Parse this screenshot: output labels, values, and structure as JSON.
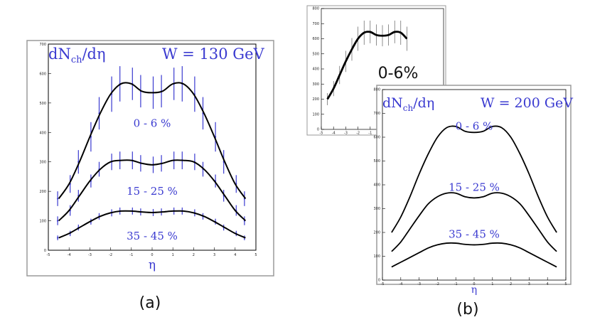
{
  "chart_data": [
    {
      "id": "a",
      "type": "line",
      "caption": "(a)",
      "title_left": "dNch/dη",
      "title_right": "W = 130 GeV",
      "xlabel": "η",
      "ylabel": "",
      "xlim": [
        -5,
        5
      ],
      "ylim": [
        0,
        700
      ],
      "xticks": [
        -5,
        -4,
        -3,
        -2,
        -1,
        0,
        1,
        2,
        3,
        4,
        5
      ],
      "yticks": [
        0,
        100,
        200,
        300,
        400,
        500,
        600,
        700
      ],
      "series": [
        {
          "name": "0 - 6 %",
          "x": [
            -4.5,
            -4.0,
            -3.5,
            -3.0,
            -2.5,
            -2.0,
            -1.5,
            -1.0,
            -0.5,
            0.0,
            0.5,
            1.0,
            1.5,
            2.0,
            2.5,
            3.0,
            3.5,
            4.0,
            4.5
          ],
          "y": [
            175,
            225,
            300,
            385,
            465,
            530,
            565,
            565,
            540,
            535,
            540,
            565,
            565,
            530,
            465,
            385,
            300,
            225,
            175
          ],
          "err": [
            25,
            30,
            40,
            50,
            55,
            60,
            60,
            55,
            55,
            55,
            55,
            55,
            60,
            60,
            55,
            50,
            40,
            30,
            25
          ]
        },
        {
          "name": "15 - 25 %",
          "x": [
            -4.5,
            -4.0,
            -3.5,
            -3.0,
            -2.5,
            -2.0,
            -1.5,
            -1.0,
            -0.5,
            0.0,
            0.5,
            1.0,
            1.5,
            2.0,
            2.5,
            3.0,
            3.5,
            4.0,
            4.5
          ],
          "y": [
            100,
            135,
            185,
            235,
            275,
            300,
            305,
            305,
            295,
            290,
            295,
            305,
            305,
            300,
            275,
            235,
            185,
            135,
            100
          ],
          "err": [
            15,
            18,
            20,
            22,
            25,
            28,
            30,
            30,
            28,
            28,
            28,
            30,
            30,
            28,
            25,
            22,
            20,
            18,
            15
          ]
        },
        {
          "name": "35 - 45 %",
          "x": [
            -4.5,
            -4.0,
            -3.5,
            -3.0,
            -2.5,
            -2.0,
            -1.5,
            -1.0,
            -0.5,
            0.0,
            0.5,
            1.0,
            1.5,
            2.0,
            2.5,
            3.0,
            3.5,
            4.0,
            4.5
          ],
          "y": [
            42,
            57,
            77,
            97,
            115,
            127,
            133,
            133,
            130,
            128,
            130,
            133,
            133,
            127,
            115,
            97,
            77,
            57,
            42
          ],
          "err": [
            8,
            9,
            10,
            10,
            11,
            12,
            12,
            12,
            12,
            12,
            12,
            12,
            12,
            12,
            11,
            10,
            10,
            9,
            8
          ]
        }
      ]
    },
    {
      "id": "inset",
      "type": "line",
      "label": "0-6%",
      "xlim": [
        -5,
        5
      ],
      "ylim": [
        0,
        800
      ],
      "xticks": [
        -5,
        -4,
        -3,
        -2,
        -1
      ],
      "yticks": [
        0,
        100,
        200,
        300,
        400,
        500,
        600,
        700,
        800
      ],
      "series": [
        {
          "name": "0-6%",
          "x": [
            -4.5,
            -4.0,
            -3.5,
            -3.0,
            -2.5,
            -2.0,
            -1.5,
            -1.0,
            -0.5,
            0.0,
            0.5,
            1.0,
            1.5,
            2.0
          ],
          "y": [
            200,
            270,
            360,
            450,
            530,
            600,
            640,
            645,
            625,
            620,
            625,
            645,
            640,
            600
          ],
          "err": [
            40,
            50,
            60,
            70,
            75,
            80,
            80,
            75,
            70,
            70,
            70,
            75,
            80,
            80
          ]
        }
      ]
    },
    {
      "id": "b",
      "type": "line",
      "caption": "(b)",
      "title_left": "dNch/dη",
      "title_right": "W = 200 GeV",
      "xlabel": "η",
      "ylabel": "",
      "xlim": [
        -5,
        5
      ],
      "ylim": [
        0,
        800
      ],
      "xticks": [
        -5,
        -4,
        -3,
        -2,
        -1,
        0,
        1,
        2,
        3,
        4,
        5
      ],
      "yticks": [
        0,
        100,
        200,
        300,
        400,
        500,
        600,
        700,
        800
      ],
      "series": [
        {
          "name": "0 - 6 %",
          "x": [
            -4.5,
            -4.0,
            -3.5,
            -3.0,
            -2.5,
            -2.0,
            -1.5,
            -1.0,
            -0.5,
            0.0,
            0.5,
            1.0,
            1.5,
            2.0,
            2.5,
            3.0,
            3.5,
            4.0,
            4.5
          ],
          "y": [
            200,
            265,
            350,
            445,
            530,
            600,
            640,
            645,
            625,
            620,
            625,
            645,
            640,
            600,
            530,
            445,
            350,
            265,
            200
          ]
        },
        {
          "name": "15 - 25 %",
          "x": [
            -4.5,
            -4.0,
            -3.5,
            -3.0,
            -2.5,
            -2.0,
            -1.5,
            -1.0,
            -0.5,
            0.0,
            0.5,
            1.0,
            1.5,
            2.0,
            2.5,
            3.0,
            3.5,
            4.0,
            4.5
          ],
          "y": [
            120,
            160,
            215,
            270,
            320,
            350,
            365,
            365,
            350,
            345,
            350,
            365,
            365,
            350,
            320,
            270,
            215,
            160,
            120
          ]
        },
        {
          "name": "35 - 45 %",
          "x": [
            -4.5,
            -4.0,
            -3.5,
            -3.0,
            -2.5,
            -2.0,
            -1.5,
            -1.0,
            -0.5,
            0.0,
            0.5,
            1.0,
            1.5,
            2.0,
            2.5,
            3.0,
            3.5,
            4.0,
            4.5
          ],
          "y": [
            55,
            75,
            95,
            115,
            135,
            148,
            155,
            155,
            150,
            148,
            150,
            155,
            155,
            148,
            135,
            115,
            95,
            75,
            55
          ]
        }
      ]
    }
  ]
}
